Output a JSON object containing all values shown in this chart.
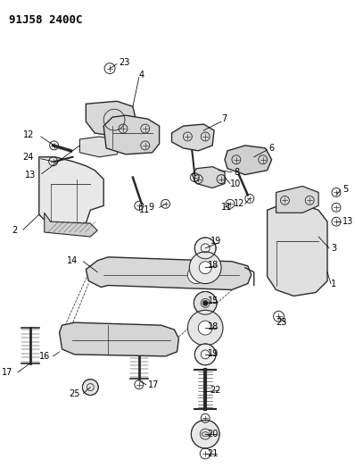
{
  "title": "91J58 2400C",
  "bg_color": "#ffffff",
  "title_fontsize": 9,
  "figsize": [
    3.98,
    5.33
  ],
  "dpi": 100,
  "line_color": "#2a2a2a",
  "label_fontsize": 7.0
}
